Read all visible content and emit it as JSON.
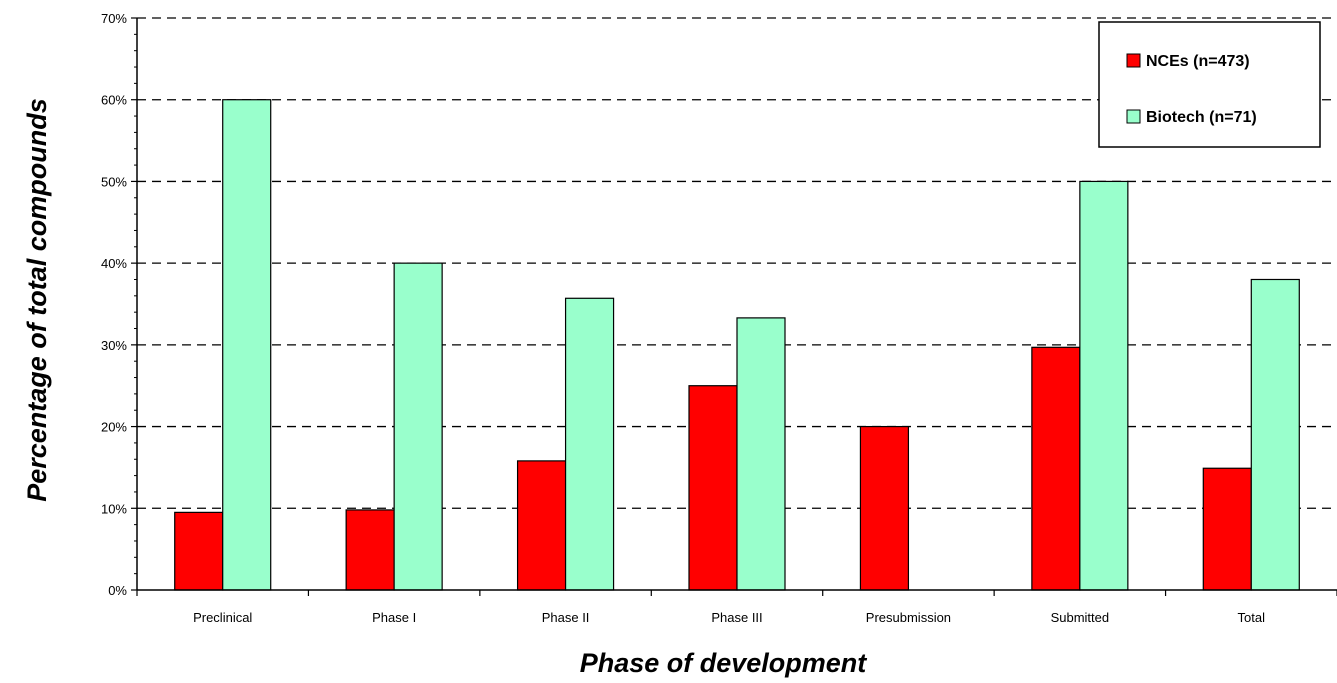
{
  "chart_data": {
    "type": "bar",
    "title": "",
    "xlabel": "Phase of development",
    "ylabel": "Percentage of total compounds",
    "categories": [
      "Preclinical",
      "Phase I",
      "Phase II",
      "Phase III",
      "Presubmission",
      "Submitted",
      "Total"
    ],
    "series": [
      {
        "name": "NCEs (n=473)",
        "color": "#ff0000",
        "values": [
          9.5,
          9.8,
          15.8,
          25.0,
          20.0,
          29.7,
          14.9
        ]
      },
      {
        "name": "Biotech (n=71)",
        "color": "#99ffcc",
        "values": [
          60.0,
          40.0,
          35.7,
          33.3,
          0,
          50.0,
          38.0
        ]
      }
    ],
    "yticks": [
      "0%",
      "10%",
      "20%",
      "30%",
      "40%",
      "50%",
      "60%",
      "70%"
    ],
    "ylim": [
      0,
      70
    ],
    "grid": true,
    "legend_position": "top-right"
  }
}
